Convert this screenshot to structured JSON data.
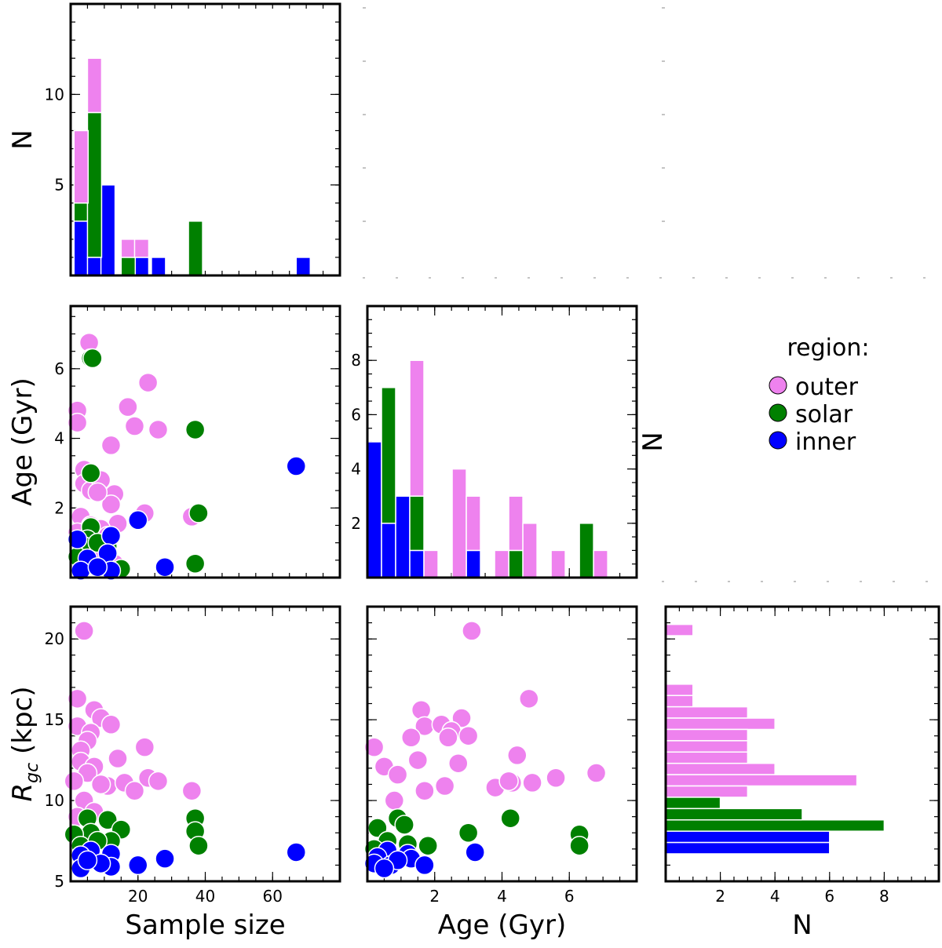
{
  "colors": {
    "outer": "#ee82ee",
    "solar": "#008000",
    "inner": "#0000ff"
  },
  "chart_data": [
    {
      "id": "hist_sample",
      "type": "bar",
      "stacked": true,
      "xlim": [
        0,
        80
      ],
      "ylim": [
        0,
        15
      ],
      "ylabel": "N",
      "y_ticks": [
        5,
        10
      ],
      "bin_width": 4.2,
      "x_starts": [
        1,
        5,
        9,
        15,
        19,
        24,
        35,
        67
      ],
      "series": [
        {
          "name": "inner",
          "values": [
            3,
            1,
            5,
            0,
            1,
            1,
            0,
            1
          ]
        },
        {
          "name": "solar",
          "values": [
            1,
            8,
            0,
            1,
            0,
            0,
            3,
            0
          ]
        },
        {
          "name": "outer",
          "values": [
            4,
            3,
            0,
            1,
            1,
            0,
            0,
            0
          ]
        }
      ]
    },
    {
      "id": "scatter_age_size",
      "type": "scatter",
      "xlim": [
        0,
        80
      ],
      "ylim": [
        0,
        7.8
      ],
      "ylabel": "Age (Gyr)",
      "y_ticks": [
        2,
        4,
        6
      ],
      "series": [
        {
          "name": "outer",
          "points": [
            [
              5.5,
              6.75
            ],
            [
              23,
              5.6
            ],
            [
              2,
              4.8
            ],
            [
              2,
              4.45
            ],
            [
              17,
              4.9
            ],
            [
              19,
              4.35
            ],
            [
              26,
              4.25
            ],
            [
              12,
              3.8
            ],
            [
              4,
              3.1
            ],
            [
              4,
              2.7
            ],
            [
              6,
              2.5
            ],
            [
              9,
              2.8
            ],
            [
              13,
              2.4
            ],
            [
              12,
              2.1
            ],
            [
              8,
              2.45
            ],
            [
              14,
              1.55
            ],
            [
              22,
              1.85
            ],
            [
              36,
              1.75
            ],
            [
              3,
              1.75
            ],
            [
              6,
              1.5
            ],
            [
              2,
              1.3
            ],
            [
              4,
              1.0
            ],
            [
              9,
              1.4
            ],
            [
              11,
              1.2
            ],
            [
              7,
              0.8
            ],
            [
              3,
              0.6
            ],
            [
              13,
              0.4
            ]
          ]
        },
        {
          "name": "solar",
          "points": [
            [
              6,
              6.3
            ],
            [
              6.5,
              6.3
            ],
            [
              37,
              4.25
            ],
            [
              6,
              3.0
            ],
            [
              38,
              1.85
            ],
            [
              37,
              0.4
            ],
            [
              6,
              1.45
            ],
            [
              5,
              1.1
            ],
            [
              4,
              0.9
            ],
            [
              15,
              0.25
            ],
            [
              2,
              0.6
            ],
            [
              11,
              0.9
            ],
            [
              8,
              1.0
            ],
            [
              5,
              0.4
            ]
          ]
        },
        {
          "name": "inner",
          "points": [
            [
              67,
              3.2
            ],
            [
              20,
              1.65
            ],
            [
              2,
              1.1
            ],
            [
              12,
              1.2
            ],
            [
              5,
              0.55
            ],
            [
              11,
              0.7
            ],
            [
              3,
              0.2
            ],
            [
              12,
              0.2
            ],
            [
              28,
              0.3
            ],
            [
              8,
              0.3
            ]
          ]
        }
      ]
    },
    {
      "id": "hist_age",
      "type": "bar",
      "stacked": true,
      "xlim": [
        0,
        8
      ],
      "ylim": [
        0,
        10
      ],
      "ylabel": "N",
      "x_ticks": [
        2,
        4,
        6
      ],
      "y_ticks": [
        2,
        4,
        6,
        8
      ],
      "bin_width": 0.42,
      "x_starts": [
        0,
        0.42,
        0.84,
        1.26,
        1.68,
        2.1,
        2.52,
        2.94,
        3.78,
        4.2,
        4.62,
        5.46,
        6.3,
        6.72
      ],
      "series": [
        {
          "name": "inner",
          "values": [
            5,
            2,
            3,
            1,
            0,
            0,
            0,
            1,
            0,
            0,
            0,
            0,
            0,
            0
          ]
        },
        {
          "name": "solar",
          "values": [
            0,
            5,
            0,
            2,
            0,
            0,
            0,
            0,
            0,
            1,
            0,
            0,
            2,
            0
          ]
        },
        {
          "name": "outer",
          "values": [
            0,
            0,
            0,
            5,
            1,
            0,
            4,
            2,
            1,
            2,
            2,
            1,
            0,
            1
          ]
        }
      ]
    },
    {
      "id": "scatter_rgc_size",
      "type": "scatter",
      "xlim": [
        0,
        80
      ],
      "ylim": [
        5,
        22
      ],
      "xlabel": "Sample size",
      "ylabel": "R_gc (kpc)",
      "ylabel_main": "R",
      "ylabel_sub": "gc",
      "ylabel_rest": " (kpc)",
      "x_ticks": [
        20,
        40,
        60
      ],
      "y_ticks": [
        5,
        10,
        15,
        20
      ],
      "series": [
        {
          "name": "outer",
          "points": [
            [
              4,
              20.5
            ],
            [
              2,
              16.3
            ],
            [
              7,
              15.6
            ],
            [
              9,
              15.1
            ],
            [
              12,
              14.7
            ],
            [
              2,
              14.6
            ],
            [
              6,
              14.2
            ],
            [
              5,
              13.7
            ],
            [
              3,
              13.1
            ],
            [
              22,
              13.3
            ],
            [
              14,
              12.6
            ],
            [
              3,
              12.4
            ],
            [
              7,
              12.1
            ],
            [
              5,
              11.7
            ],
            [
              11,
              10.9
            ],
            [
              9,
              11.0
            ],
            [
              23,
              11.4
            ],
            [
              26,
              11.2
            ],
            [
              16,
              11.1
            ],
            [
              19,
              10.6
            ],
            [
              4,
              10.0
            ],
            [
              1,
              11.2
            ],
            [
              36,
              10.6
            ],
            [
              7,
              9.3
            ],
            [
              2,
              9.0
            ]
          ]
        },
        {
          "name": "solar",
          "points": [
            [
              37,
              8.9
            ],
            [
              37,
              8.1
            ],
            [
              38,
              7.2
            ],
            [
              5,
              8.9
            ],
            [
              11,
              8.8
            ],
            [
              15,
              8.2
            ],
            [
              6,
              8.0
            ],
            [
              1,
              7.9
            ],
            [
              3,
              7.2
            ],
            [
              12,
              7.5
            ],
            [
              8,
              7.5
            ]
          ]
        },
        {
          "name": "inner",
          "points": [
            [
              67,
              6.8
            ],
            [
              6,
              6.9
            ],
            [
              12,
              6.7
            ],
            [
              28,
              6.4
            ],
            [
              20,
              6.0
            ],
            [
              3,
              6.6
            ],
            [
              3,
              5.8
            ],
            [
              12,
              5.9
            ],
            [
              9,
              6.1
            ],
            [
              5,
              6.3
            ]
          ]
        }
      ]
    },
    {
      "id": "scatter_rgc_age",
      "type": "scatter",
      "xlim": [
        0,
        8
      ],
      "ylim": [
        5,
        22
      ],
      "xlabel": "Age (Gyr)",
      "x_ticks": [
        2,
        4,
        6
      ],
      "series": [
        {
          "name": "outer",
          "points": [
            [
              3.1,
              20.5
            ],
            [
              4.8,
              16.3
            ],
            [
              1.6,
              15.6
            ],
            [
              2.8,
              15.1
            ],
            [
              1.7,
              14.6
            ],
            [
              2.2,
              14.7
            ],
            [
              2.5,
              14.3
            ],
            [
              2.4,
              13.9
            ],
            [
              1.3,
              13.9
            ],
            [
              3.0,
              14.0
            ],
            [
              0.2,
              13.3
            ],
            [
              0.5,
              12.1
            ],
            [
              1.5,
              12.5
            ],
            [
              2.7,
              12.3
            ],
            [
              4.45,
              12.8
            ],
            [
              0.9,
              11.6
            ],
            [
              2.3,
              10.9
            ],
            [
              1.7,
              10.6
            ],
            [
              4.3,
              11.1
            ],
            [
              3.8,
              10.8
            ],
            [
              4.2,
              11.2
            ],
            [
              4.9,
              11.1
            ],
            [
              5.6,
              11.4
            ],
            [
              6.8,
              11.7
            ],
            [
              0.8,
              10.0
            ]
          ]
        },
        {
          "name": "solar",
          "points": [
            [
              0.3,
              8.3
            ],
            [
              0.9,
              8.9
            ],
            [
              1.1,
              8.5
            ],
            [
              3.0,
              8.0
            ],
            [
              4.25,
              8.9
            ],
            [
              6.3,
              7.9
            ],
            [
              6.3,
              7.2
            ],
            [
              1.8,
              7.2
            ],
            [
              0.6,
              7.5
            ],
            [
              1.2,
              7.3
            ],
            [
              0.2,
              7.0
            ]
          ]
        },
        {
          "name": "inner",
          "points": [
            [
              0.6,
              6.9
            ],
            [
              3.2,
              6.8
            ],
            [
              0.3,
              6.5
            ],
            [
              1.2,
              6.7
            ],
            [
              1.3,
              6.4
            ],
            [
              0.2,
              6.1
            ],
            [
              1.7,
              6.0
            ],
            [
              0.7,
              6.0
            ],
            [
              0.9,
              6.3
            ],
            [
              0.5,
              5.8
            ]
          ]
        }
      ]
    },
    {
      "id": "hist_rgc",
      "type": "bar",
      "orientation": "horizontal",
      "stacked": false,
      "xlim": [
        0,
        10
      ],
      "ylim": [
        5,
        22
      ],
      "xlabel": "N",
      "x_ticks": [
        2,
        4,
        6,
        8
      ],
      "bin_height": 0.7,
      "bins": [
        {
          "y": 20.2,
          "value": 1,
          "region": "outer"
        },
        {
          "y": 16.5,
          "value": 1,
          "region": "outer"
        },
        {
          "y": 15.8,
          "value": 1,
          "region": "outer"
        },
        {
          "y": 15.1,
          "value": 3,
          "region": "outer"
        },
        {
          "y": 14.4,
          "value": 4,
          "region": "outer"
        },
        {
          "y": 13.7,
          "value": 3,
          "region": "outer"
        },
        {
          "y": 13.0,
          "value": 3,
          "region": "outer"
        },
        {
          "y": 12.3,
          "value": 3,
          "region": "outer"
        },
        {
          "y": 11.6,
          "value": 4,
          "region": "outer"
        },
        {
          "y": 10.9,
          "value": 7,
          "region": "outer"
        },
        {
          "y": 10.2,
          "value": 3,
          "region": "outer"
        },
        {
          "y": 9.5,
          "value": 2,
          "region": "solar"
        },
        {
          "y": 8.8,
          "value": 5,
          "region": "solar"
        },
        {
          "y": 8.1,
          "value": 8,
          "region": "solar"
        },
        {
          "y": 7.4,
          "value": 6,
          "region": "inner"
        },
        {
          "y": 6.7,
          "value": 6,
          "region": "inner"
        }
      ]
    }
  ],
  "legend": {
    "title": "region:",
    "items": [
      {
        "label": "outer",
        "color": "#ee82ee"
      },
      {
        "label": "solar",
        "color": "#008000"
      },
      {
        "label": "inner",
        "color": "#0000ff"
      }
    ]
  }
}
